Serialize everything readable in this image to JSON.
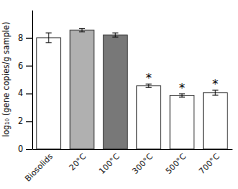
{
  "chart_data": {
    "type": "bar",
    "categories": [
      "Biosolids",
      "20°C",
      "100°C",
      "300°C",
      "500°C",
      "700°C"
    ],
    "values": [
      8.0,
      8.55,
      8.2,
      4.55,
      3.85,
      4.05
    ],
    "errors": [
      0.35,
      0.12,
      0.15,
      0.12,
      0.12,
      0.18
    ],
    "colors": [
      "white",
      "#b0b0b0",
      "#787878",
      "white",
      "white",
      "white"
    ],
    "ylabel": "log₁₀ (gene copies/g sample)",
    "ylim": [
      0,
      10
    ],
    "yticks": [
      0,
      2,
      4,
      6,
      8
    ],
    "grid": false,
    "annotations": [
      {
        "text": "*",
        "x": "300°C"
      },
      {
        "text": "*",
        "x": "500°C"
      },
      {
        "text": "*",
        "x": "700°C"
      }
    ]
  }
}
